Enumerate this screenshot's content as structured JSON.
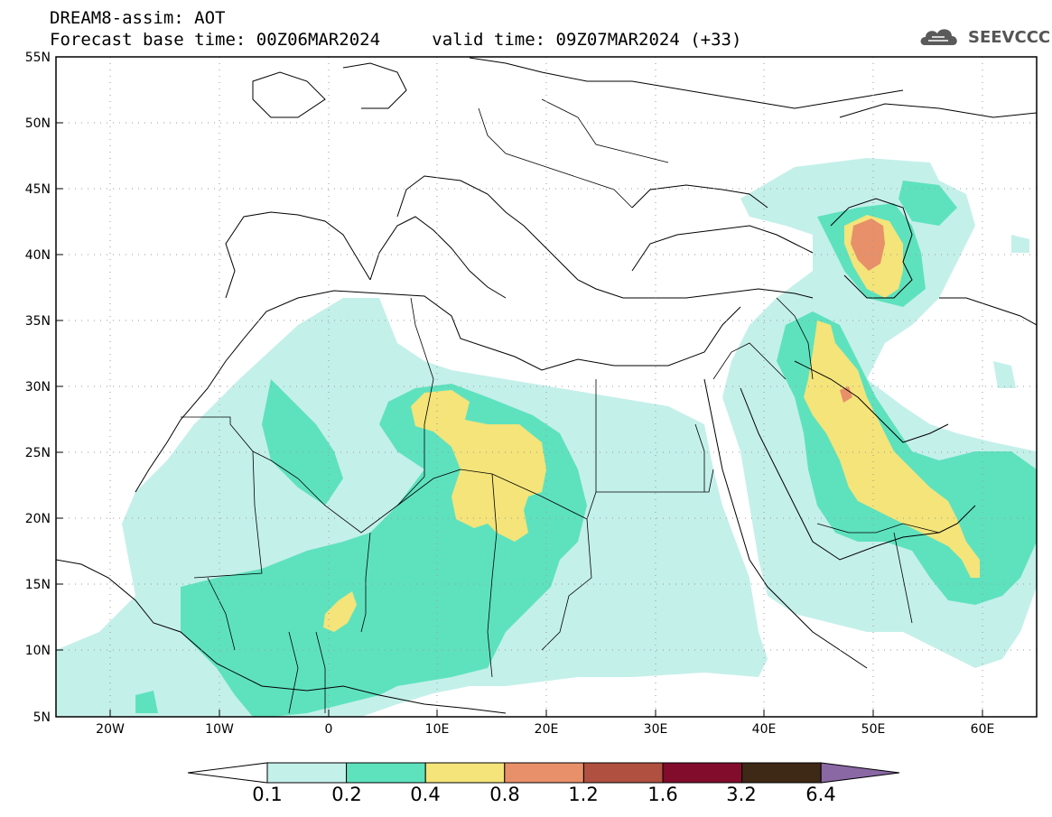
{
  "header": {
    "title": "DREAM8-assim: AOT",
    "base_time_label": "Forecast base time: 00Z06MAR2024",
    "valid_time_label": "valid time: 09Z07MAR2024 (+33)"
  },
  "logo": {
    "text": "SEEVCCC",
    "icon": "cloud-icon"
  },
  "map": {
    "lon_range": [
      -25,
      65
    ],
    "lat_range": [
      5,
      55
    ],
    "lon_ticks": [
      "20W",
      "10W",
      "0",
      "10E",
      "20E",
      "30E",
      "40E",
      "50E",
      "60E"
    ],
    "lat_ticks": [
      "55N",
      "50N",
      "45N",
      "40N",
      "35N",
      "30N",
      "25N",
      "20N",
      "15N",
      "10N",
      "5N"
    ],
    "grid": "dotted"
  },
  "colorbar": {
    "labels": [
      "0.1",
      "0.2",
      "0.4",
      "0.8",
      "1.2",
      "1.6",
      "3.2",
      "6.4"
    ],
    "colors": [
      "#ffffff",
      "#c4f0ea",
      "#5ee2be",
      "#f4e47a",
      "#e8906a",
      "#b05040",
      "#820c2c",
      "#3e2816",
      "#8a68a4"
    ]
  }
}
